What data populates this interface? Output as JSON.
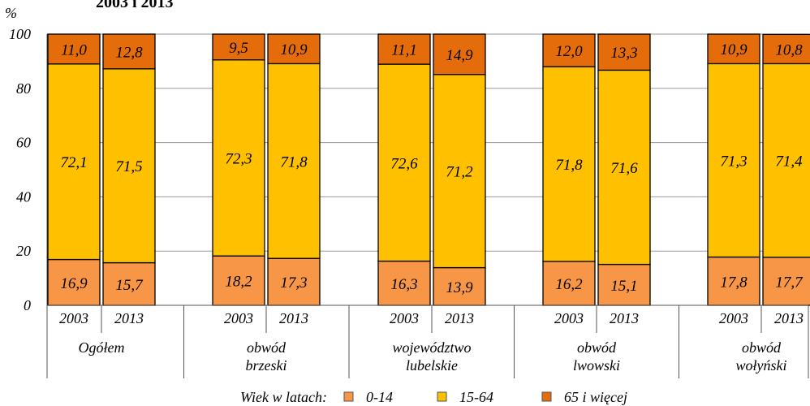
{
  "chart_data": {
    "type": "bar",
    "stacked": true,
    "title": "2003 i 2013",
    "ylabel": "%",
    "ylim": [
      0,
      100
    ],
    "yticks": [
      "0",
      "20",
      "40",
      "60",
      "80",
      "100"
    ],
    "grid": true,
    "groups": [
      {
        "label": "Ogółem",
        "years": [
          "2003",
          "2013"
        ]
      },
      {
        "label": "obwód\nbrzeski",
        "years": [
          "2003",
          "2013"
        ]
      },
      {
        "label": "województwo\nlubelskie",
        "years": [
          "2003",
          "2013"
        ]
      },
      {
        "label": "obwód\nlwowski",
        "years": [
          "2003",
          "2013"
        ]
      },
      {
        "label": "obwód\nwołyński",
        "years": [
          "2003",
          "2013"
        ]
      }
    ],
    "series": [
      {
        "name": "0-14",
        "color": "#F79646",
        "values": [
          16.9,
          15.7,
          18.2,
          17.3,
          16.3,
          13.9,
          16.2,
          15.1,
          17.8,
          17.7
        ],
        "labels": [
          "16,9",
          "15,7",
          "18,2",
          "17,3",
          "16,3",
          "13,9",
          "16,2",
          "15,1",
          "17,8",
          "17,7"
        ]
      },
      {
        "name": "15-64",
        "color": "#FFC000",
        "values": [
          72.1,
          71.5,
          72.3,
          71.8,
          72.6,
          71.2,
          71.8,
          71.6,
          71.3,
          71.4
        ],
        "labels": [
          "72,1",
          "71,5",
          "72,3",
          "71,8",
          "72,6",
          "71,2",
          "71,8",
          "71,6",
          "71,3",
          "71,4"
        ]
      },
      {
        "name": "65 i więcej",
        "color": "#E46C0A",
        "values": [
          11.0,
          12.8,
          9.5,
          10.9,
          11.1,
          14.9,
          12.0,
          13.3,
          10.9,
          10.8
        ],
        "labels": [
          "11,0",
          "12,8",
          "9,5",
          "10,9",
          "11,1",
          "14,9",
          "12,0",
          "13,3",
          "10,9",
          "10,8"
        ]
      }
    ],
    "legend": {
      "title": "Wiek w latach:",
      "placement": "bottom"
    }
  }
}
